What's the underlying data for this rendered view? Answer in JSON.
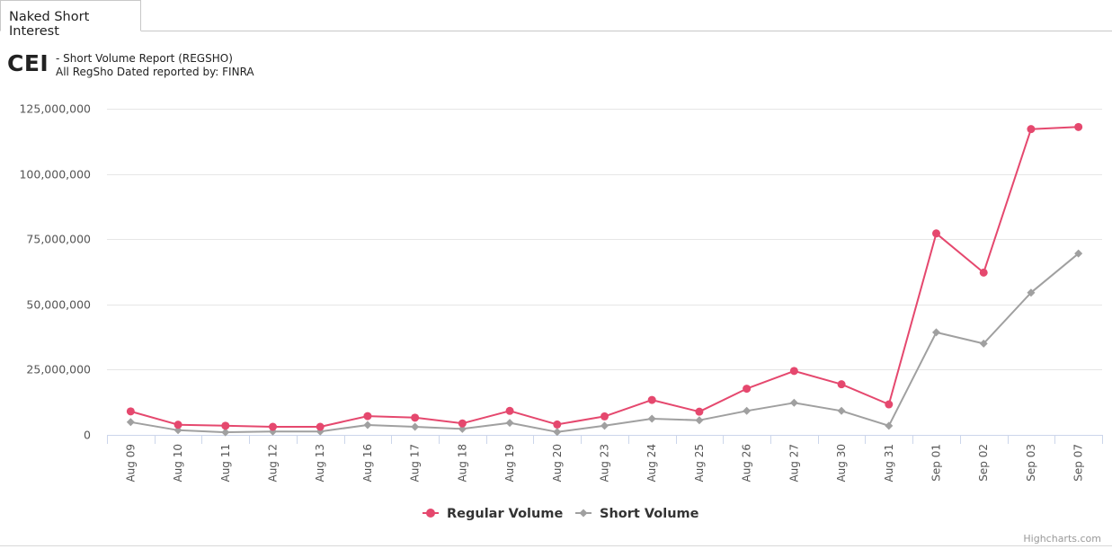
{
  "tab": {
    "label": "Naked Short Interest"
  },
  "header": {
    "ticker": "CEI",
    "report_line": "- Short Volume Report  (REGSHO)",
    "source_line": "All RegSho Dated reported by: FINRA"
  },
  "credits": "Highcharts.com",
  "chart_data": {
    "type": "line",
    "title": "",
    "xlabel": "",
    "ylabel": "",
    "categories": [
      "Aug 09",
      "Aug 10",
      "Aug 11",
      "Aug 12",
      "Aug 13",
      "Aug 16",
      "Aug 17",
      "Aug 18",
      "Aug 19",
      "Aug 20",
      "Aug 23",
      "Aug 24",
      "Aug 25",
      "Aug 26",
      "Aug 27",
      "Aug 30",
      "Aug 31",
      "Sep 01",
      "Sep 02",
      "Sep 03",
      "Sep 07"
    ],
    "ylim": [
      0,
      125000000
    ],
    "yticks": [
      0,
      25000000,
      50000000,
      75000000,
      100000000,
      125000000
    ],
    "ytick_labels": [
      "0",
      "25,000,000",
      "50,000,000",
      "75,000,000",
      "100,000,000",
      "125,000,000"
    ],
    "grid": true,
    "legend_position": "bottom-center",
    "series": [
      {
        "name": "Regular Volume",
        "color": "#e5486e",
        "marker": "circle",
        "values": [
          9000000,
          3900000,
          3500000,
          3100000,
          3100000,
          7200000,
          6600000,
          4400000,
          9200000,
          4000000,
          7100000,
          13400000,
          8900000,
          17700000,
          24500000,
          19400000,
          11700000,
          77200000,
          62200000,
          117200000,
          118000000
        ]
      },
      {
        "name": "Short Volume",
        "color": "#a0a0a0",
        "marker": "diamond",
        "values": [
          4900000,
          1800000,
          1000000,
          1300000,
          1300000,
          3800000,
          3100000,
          2300000,
          4600000,
          1100000,
          3500000,
          6200000,
          5600000,
          9200000,
          12300000,
          9200000,
          3500000,
          39300000,
          35000000,
          54500000,
          69500000
        ]
      }
    ]
  }
}
